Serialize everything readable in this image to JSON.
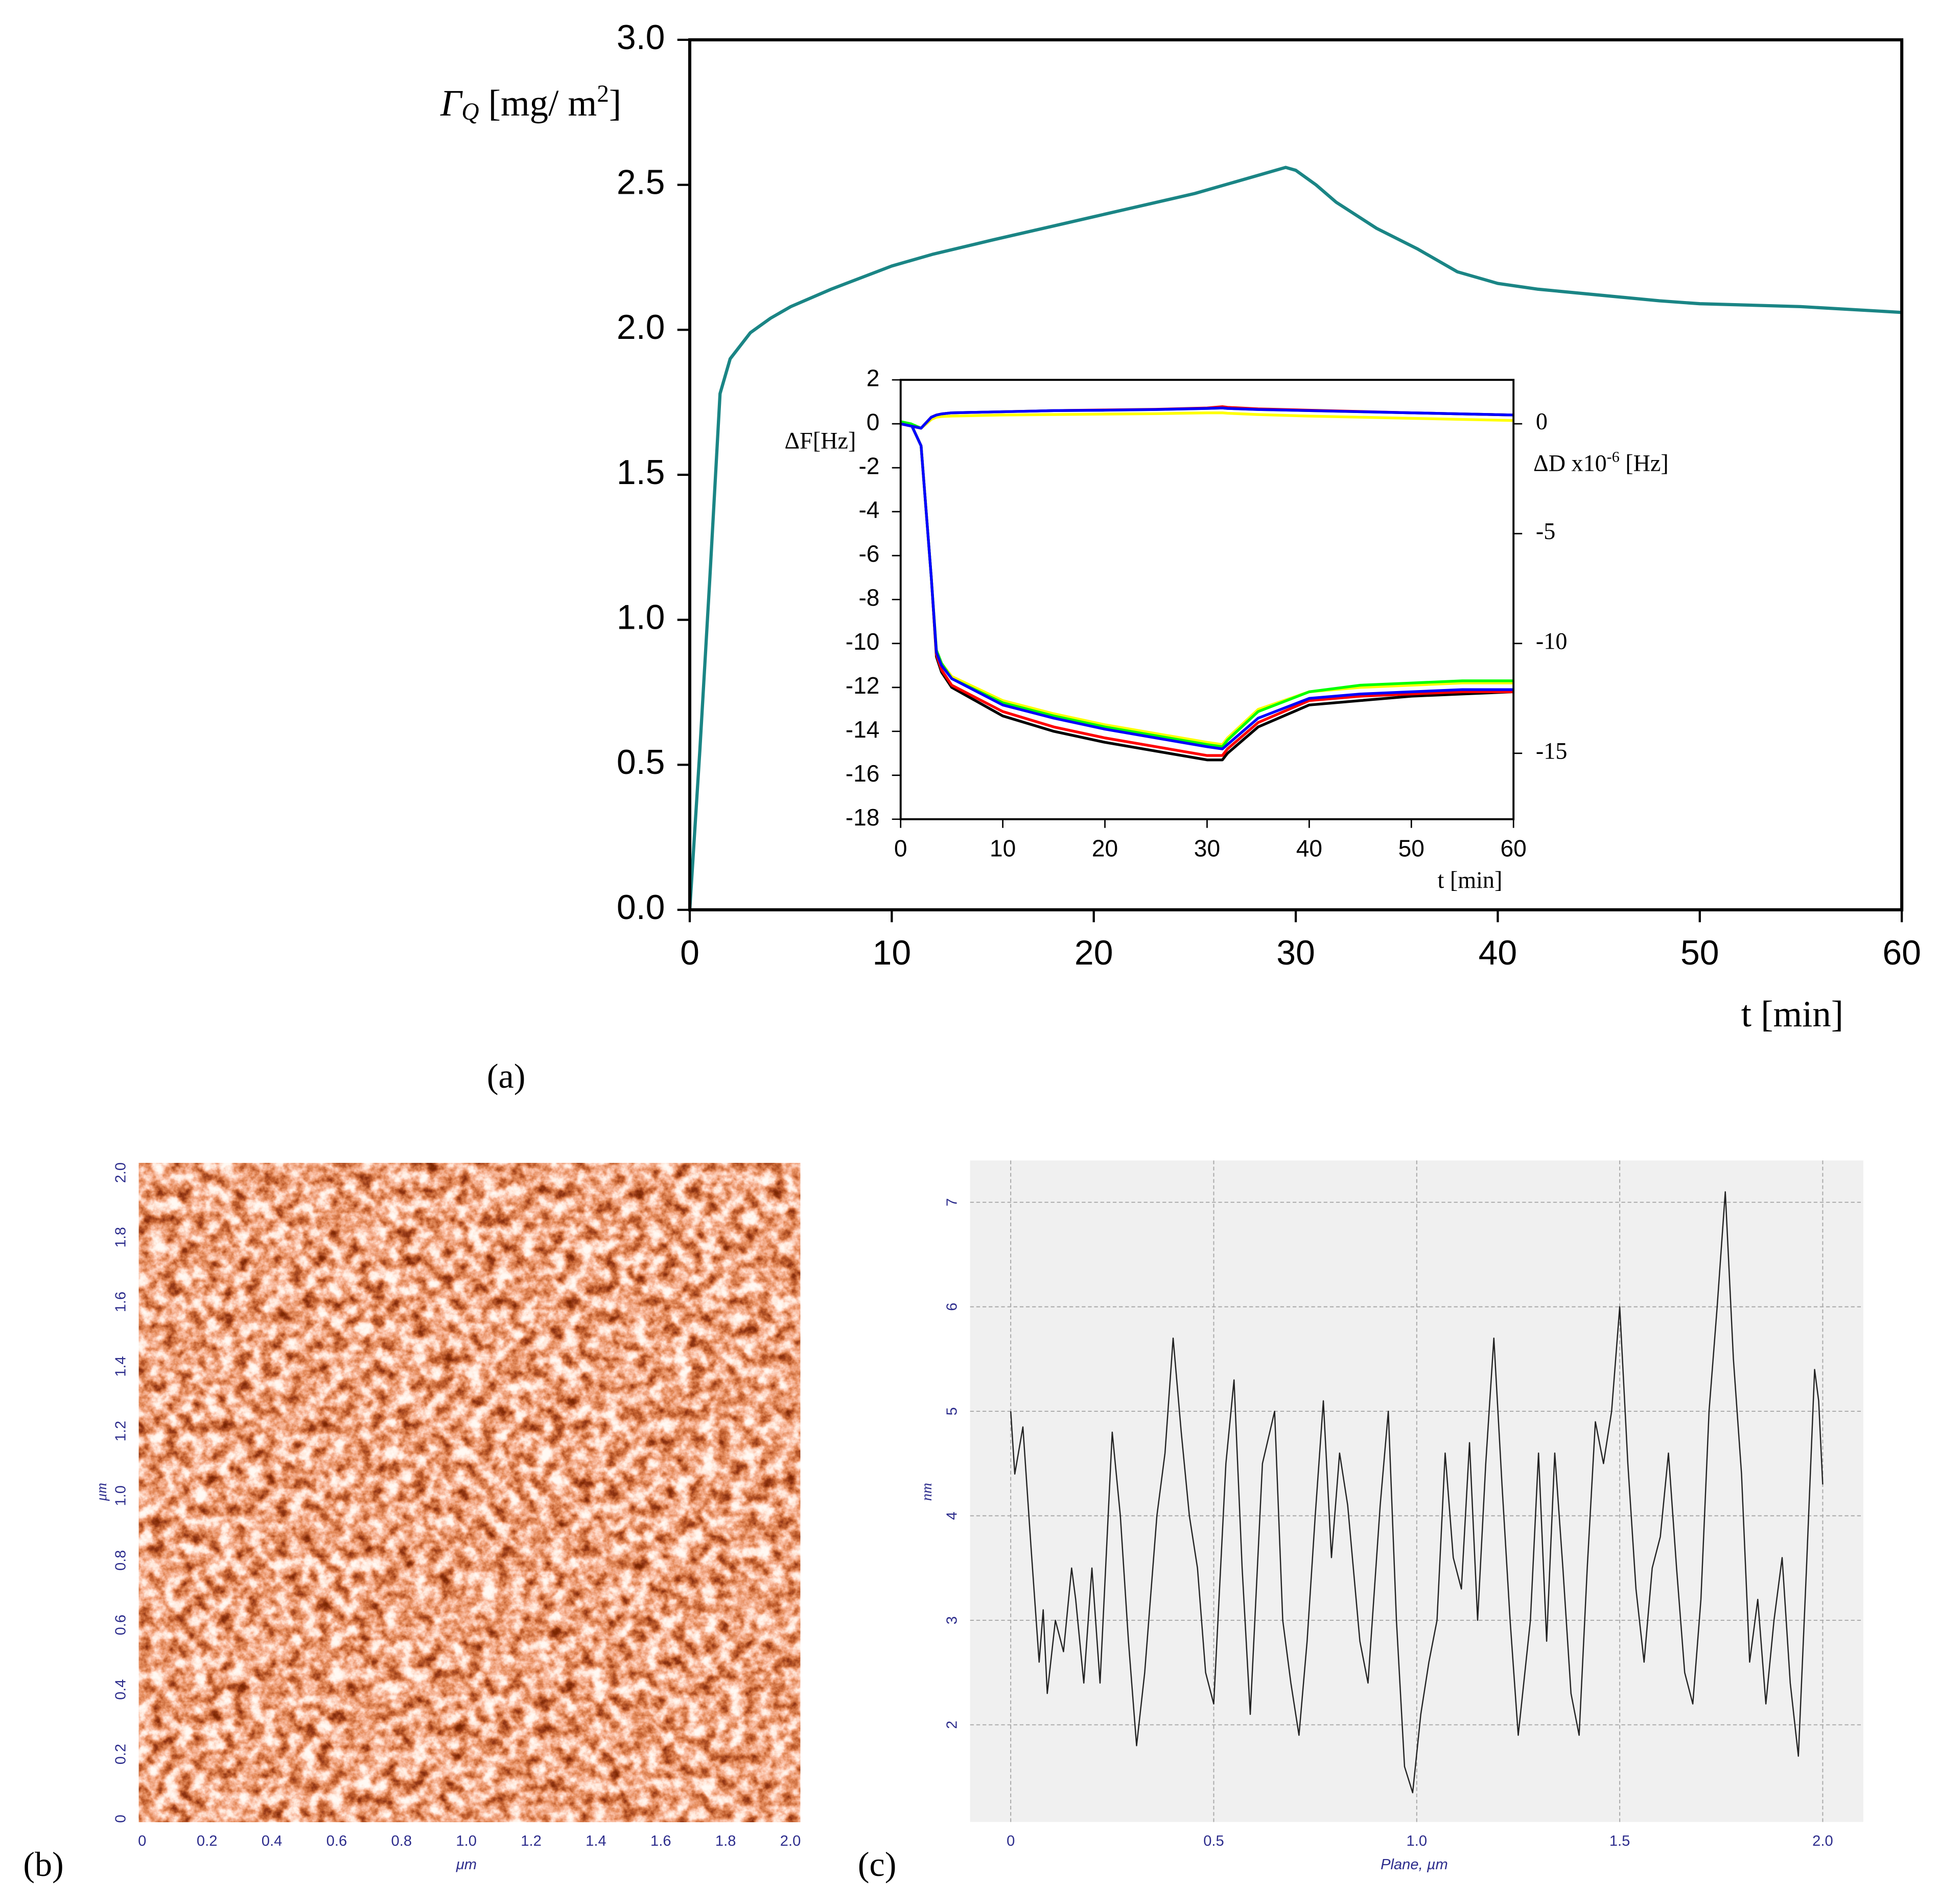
{
  "chart_data": [
    {
      "type": "line",
      "panel_label": "(a)",
      "xlabel": "t [min]",
      "ylabel": [
        "Γ",
        "Q",
        " [mg/ m",
        "2",
        "]"
      ],
      "xlim": [
        0,
        60
      ],
      "ylim": [
        0,
        3
      ],
      "xticks": [
        0,
        10,
        20,
        30,
        40,
        50,
        60
      ],
      "yticks": [
        {
          "value": 0,
          "label": "0.0"
        },
        {
          "value": 0.5,
          "label": "0.5"
        },
        {
          "value": 1,
          "label": "1.0"
        },
        {
          "value": 1.5,
          "label": "1.5"
        },
        {
          "value": 2,
          "label": "2.0"
        },
        {
          "value": 2.5,
          "label": "2.5"
        },
        {
          "value": 3,
          "label": "3.0"
        }
      ],
      "x": [
        0,
        0.5,
        1,
        1.5,
        2,
        3,
        4,
        5,
        7,
        10,
        12,
        15,
        20,
        25,
        28,
        29.5,
        30,
        31,
        32,
        34,
        36,
        38,
        40,
        42,
        45,
        48,
        50,
        55,
        60
      ],
      "series": [
        {
          "color": "#1a8585",
          "values": [
            0,
            0.55,
            1.15,
            1.78,
            1.9,
            1.99,
            2.04,
            2.08,
            2.14,
            2.22,
            2.26,
            2.31,
            2.39,
            2.47,
            2.53,
            2.56,
            2.55,
            2.5,
            2.44,
            2.35,
            2.28,
            2.2,
            2.16,
            2.14,
            2.12,
            2.1,
            2.09,
            2.08,
            2.06
          ]
        }
      ]
    },
    {
      "type": "line",
      "xlabel": "t [min]",
      "ylabel": "ΔF[Hz]",
      "y2label": [
        "ΔD x10",
        "-6",
        " [Hz]"
      ],
      "xlim": [
        0,
        60
      ],
      "ylim": [
        -18,
        2
      ],
      "y2lim": [
        -18,
        2
      ],
      "xticks": [
        0,
        10,
        20,
        30,
        40,
        50,
        60
      ],
      "yticks": [
        -18,
        -16,
        -14,
        -12,
        -10,
        -8,
        -6,
        -4,
        -2,
        0,
        2
      ],
      "y2ticks": [
        0,
        -5,
        -10,
        -15
      ],
      "x": [
        0,
        1,
        2,
        3,
        3.5,
        4,
        5,
        10,
        15,
        20,
        25,
        30,
        31.5,
        32,
        35,
        40,
        45,
        50,
        55,
        60
      ],
      "series": [
        {
          "color": "#000000",
          "values": [
            0,
            0,
            -1,
            -7,
            -10.6,
            -11.3,
            -12,
            -13.3,
            -14,
            -14.5,
            -14.9,
            -15.3,
            -15.3,
            -15,
            -13.8,
            -12.8,
            -12.6,
            -12.4,
            -12.3,
            -12.2
          ]
        },
        {
          "color": "#ff0000",
          "values": [
            0,
            0,
            -1,
            -7,
            -10.5,
            -11.2,
            -11.9,
            -13.1,
            -13.8,
            -14.3,
            -14.7,
            -15.1,
            -15.1,
            -14.8,
            -13.6,
            -12.6,
            -12.4,
            -12.3,
            -12.2,
            -12.2
          ]
        },
        {
          "color": "#ffff00",
          "values": [
            0,
            0,
            -1,
            -7,
            -10.3,
            -10.9,
            -11.5,
            -12.6,
            -13.2,
            -13.7,
            -14.1,
            -14.5,
            -14.6,
            -14.3,
            -13,
            -12.2,
            -12,
            -11.9,
            -11.8,
            -11.8
          ]
        },
        {
          "color": "#00ff00",
          "values": [
            0,
            0,
            -1,
            -7,
            -10.3,
            -10.9,
            -11.6,
            -12.7,
            -13.3,
            -13.8,
            -14.2,
            -14.6,
            -14.7,
            -14.4,
            -13.1,
            -12.2,
            -11.9,
            -11.8,
            -11.7,
            -11.7
          ]
        },
        {
          "color": "#0000ff",
          "values": [
            0,
            0,
            -1,
            -7,
            -10.4,
            -11,
            -11.6,
            -12.8,
            -13.4,
            -13.9,
            -14.3,
            -14.7,
            -14.8,
            -14.6,
            -13.4,
            -12.5,
            -12.3,
            -12.2,
            -12.1,
            -12.1
          ]
        },
        {
          "color": "#ffff00",
          "axis": "y2",
          "values": [
            0,
            -0.1,
            -0.2,
            0.2,
            0.3,
            0.33,
            0.35,
            0.4,
            0.42,
            0.44,
            0.46,
            0.5,
            0.5,
            0.48,
            0.42,
            0.35,
            0.3,
            0.25,
            0.2,
            0.15
          ]
        },
        {
          "color": "#00ff00",
          "axis": "y2",
          "values": [
            0.1,
            0,
            -0.2,
            0.3,
            0.4,
            0.45,
            0.5,
            0.55,
            0.6,
            0.62,
            0.65,
            0.7,
            0.72,
            0.7,
            0.65,
            0.6,
            0.55,
            0.5,
            0.45,
            0.4
          ]
        },
        {
          "color": "#ff0000",
          "axis": "y2",
          "values": [
            0,
            -0.1,
            -0.2,
            0.3,
            0.4,
            0.45,
            0.5,
            0.55,
            0.6,
            0.63,
            0.66,
            0.72,
            0.78,
            0.75,
            0.68,
            0.62,
            0.56,
            0.5,
            0.45,
            0.4
          ]
        },
        {
          "color": "#0000ff",
          "axis": "y2",
          "values": [
            0,
            -0.1,
            -0.2,
            0.3,
            0.4,
            0.45,
            0.5,
            0.55,
            0.6,
            0.62,
            0.65,
            0.7,
            0.72,
            0.7,
            0.65,
            0.6,
            0.55,
            0.5,
            0.45,
            0.4
          ]
        }
      ]
    },
    {
      "type": "heatmap",
      "panel_label": "(b)",
      "xlabel": "μm",
      "ylabel": "μm",
      "xlim": [
        -0.01,
        2.03
      ],
      "ylim": [
        -0.01,
        2.03
      ],
      "xticks": [
        0,
        0.2,
        0.4,
        0.6,
        0.8,
        {
          "value": 1,
          "label": "1.0"
        },
        1.2,
        1.4,
        1.6,
        1.8,
        {
          "value": 2,
          "label": "2.0"
        }
      ],
      "yticks": [
        0,
        0.2,
        0.4,
        0.6,
        0.8,
        {
          "value": 1,
          "label": "1.0"
        },
        1.2,
        1.4,
        1.6,
        1.8,
        {
          "value": 2,
          "label": "2.0"
        }
      ]
    },
    {
      "type": "line",
      "panel_label": "(c)",
      "xlabel": "Plane, µm",
      "ylabel": "nm",
      "grid": true,
      "xlim": [
        -0.1,
        2.1
      ],
      "ylim": [
        1.07,
        7.4
      ],
      "xticks": [
        0,
        0.5,
        {
          "value": 1,
          "label": "1.0"
        },
        1.5,
        {
          "value": 2,
          "label": "2.0"
        }
      ],
      "yticks": [
        2,
        3,
        4,
        5,
        6,
        7
      ],
      "x": [
        0,
        0.01,
        0.03,
        0.05,
        0.07,
        0.08,
        0.09,
        0.11,
        0.13,
        0.15,
        0.16,
        0.18,
        0.2,
        0.22,
        0.25,
        0.27,
        0.29,
        0.31,
        0.33,
        0.36,
        0.38,
        0.4,
        0.42,
        0.44,
        0.46,
        0.48,
        0.5,
        0.53,
        0.55,
        0.57,
        0.59,
        0.62,
        0.65,
        0.67,
        0.69,
        0.71,
        0.73,
        0.75,
        0.77,
        0.79,
        0.81,
        0.83,
        0.86,
        0.88,
        0.91,
        0.93,
        0.95,
        0.97,
        0.99,
        1.01,
        1.03,
        1.05,
        1.07,
        1.09,
        1.11,
        1.13,
        1.15,
        1.17,
        1.19,
        1.21,
        1.23,
        1.25,
        1.28,
        1.3,
        1.32,
        1.34,
        1.36,
        1.38,
        1.4,
        1.42,
        1.44,
        1.46,
        1.48,
        1.5,
        1.52,
        1.54,
        1.56,
        1.58,
        1.6,
        1.62,
        1.64,
        1.66,
        1.68,
        1.7,
        1.72,
        1.74,
        1.76,
        1.78,
        1.8,
        1.82,
        1.84,
        1.86,
        1.88,
        1.9,
        1.92,
        1.94,
        1.96,
        1.98,
        1.99,
        2
      ],
      "series": [
        {
          "color": "#222222",
          "values": [
            5,
            4.4,
            4.85,
            3.7,
            2.6,
            3.1,
            2.3,
            3,
            2.7,
            3.5,
            3.2,
            2.4,
            3.5,
            2.4,
            4.8,
            4,
            2.8,
            1.8,
            2.5,
            4,
            4.6,
            5.7,
            4.8,
            4,
            3.5,
            2.5,
            2.2,
            4.5,
            5.3,
            3.5,
            2.1,
            4.5,
            5,
            3,
            2.4,
            1.9,
            2.8,
            4,
            5.1,
            3.6,
            4.6,
            4.1,
            2.8,
            2.4,
            4.1,
            5,
            3,
            1.6,
            1.35,
            2.1,
            2.6,
            3,
            4.6,
            3.6,
            3.3,
            4.7,
            3,
            4.5,
            5.7,
            4.3,
            3,
            1.9,
            3,
            4.6,
            2.8,
            4.6,
            3.5,
            2.3,
            1.9,
            3.5,
            4.9,
            4.5,
            5,
            6,
            4.5,
            3.3,
            2.6,
            3.5,
            3.8,
            4.6,
            3.5,
            2.5,
            2.2,
            3.2,
            5,
            6,
            7.1,
            5.5,
            4.4,
            2.6,
            3.2,
            2.2,
            3,
            3.6,
            2.4,
            1.7,
            3.5,
            5.4,
            5.1,
            4.3
          ]
        }
      ]
    }
  ]
}
